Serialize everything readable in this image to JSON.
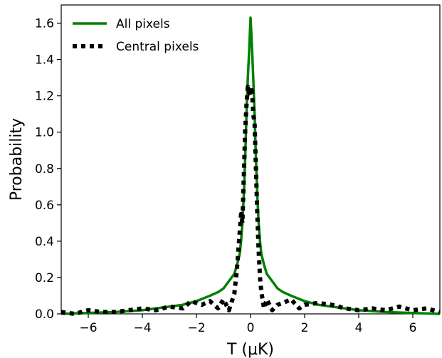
{
  "chart_data": {
    "type": "line",
    "xlabel": "T (μK)",
    "ylabel": "Probability",
    "xlim": [
      -7,
      7
    ],
    "ylim": [
      0,
      1.7
    ],
    "x_ticks": [
      -6,
      -4,
      -2,
      0,
      2,
      4,
      6
    ],
    "x_tick_labels": [
      "−6",
      "−4",
      "−2",
      "0",
      "2",
      "4",
      "6"
    ],
    "y_ticks": [
      0.0,
      0.2,
      0.4,
      0.6,
      0.8,
      1.0,
      1.2,
      1.4,
      1.6
    ],
    "y_tick_labels": [
      "0.0",
      "0.2",
      "0.4",
      "0.6",
      "0.8",
      "1.0",
      "1.2",
      "1.4",
      "1.6"
    ],
    "grid": false,
    "legend": {
      "position": "top-left",
      "entries": [
        "All pixels",
        "Central pixels"
      ]
    },
    "series": [
      {
        "name": "All pixels",
        "color": "#008000",
        "style": "solid",
        "x": [
          -7,
          -6,
          -5,
          -4,
          -3,
          -2.5,
          -2,
          -1.5,
          -1.2,
          -1,
          -0.8,
          -0.6,
          -0.5,
          -0.4,
          -0.35,
          -0.3,
          -0.25,
          -0.2,
          -0.15,
          -0.1,
          -0.05,
          0,
          0.05,
          0.1,
          0.15,
          0.2,
          0.25,
          0.3,
          0.35,
          0.4,
          0.5,
          0.6,
          0.8,
          1,
          1.2,
          1.5,
          2,
          2.5,
          3,
          4,
          5,
          6,
          7
        ],
        "y": [
          0.0,
          0.005,
          0.01,
          0.02,
          0.04,
          0.05,
          0.07,
          0.1,
          0.12,
          0.14,
          0.18,
          0.22,
          0.27,
          0.33,
          0.4,
          0.5,
          0.65,
          0.85,
          1.1,
          1.3,
          1.45,
          1.63,
          1.48,
          1.3,
          1.1,
          0.85,
          0.65,
          0.5,
          0.4,
          0.33,
          0.27,
          0.22,
          0.18,
          0.14,
          0.12,
          0.1,
          0.07,
          0.05,
          0.04,
          0.02,
          0.01,
          0.005,
          0.0
        ]
      },
      {
        "name": "Central pixels",
        "color": "#000000",
        "style": "dotted",
        "x": [
          -7,
          -6.5,
          -6,
          -5.5,
          -5,
          -4.5,
          -4,
          -3.5,
          -3,
          -2.5,
          -2.2,
          -2,
          -1.8,
          -1.5,
          -1.2,
          -1,
          -0.8,
          -0.6,
          -0.5,
          -0.4,
          -0.35,
          -0.3,
          -0.25,
          -0.2,
          -0.15,
          -0.1,
          -0.05,
          0,
          0.05,
          0.1,
          0.15,
          0.2,
          0.25,
          0.3,
          0.35,
          0.4,
          0.5,
          0.6,
          0.8,
          1,
          1.2,
          1.5,
          1.8,
          2,
          2.5,
          3,
          3.5,
          4,
          4.5,
          5,
          5.5,
          6,
          6.5,
          7
        ],
        "y": [
          0.01,
          0.0,
          0.02,
          0.01,
          0.01,
          0.02,
          0.03,
          0.02,
          0.04,
          0.03,
          0.07,
          0.06,
          0.05,
          0.07,
          0.03,
          0.08,
          0.02,
          0.11,
          0.25,
          0.45,
          0.55,
          0.5,
          0.75,
          1.0,
          1.15,
          1.25,
          1.22,
          1.2,
          1.25,
          1.1,
          1.05,
          0.8,
          0.55,
          0.35,
          0.2,
          0.12,
          0.03,
          0.08,
          0.02,
          0.05,
          0.06,
          0.08,
          0.03,
          0.05,
          0.06,
          0.05,
          0.03,
          0.02,
          0.03,
          0.02,
          0.04,
          0.02,
          0.03,
          0.01
        ]
      }
    ]
  }
}
